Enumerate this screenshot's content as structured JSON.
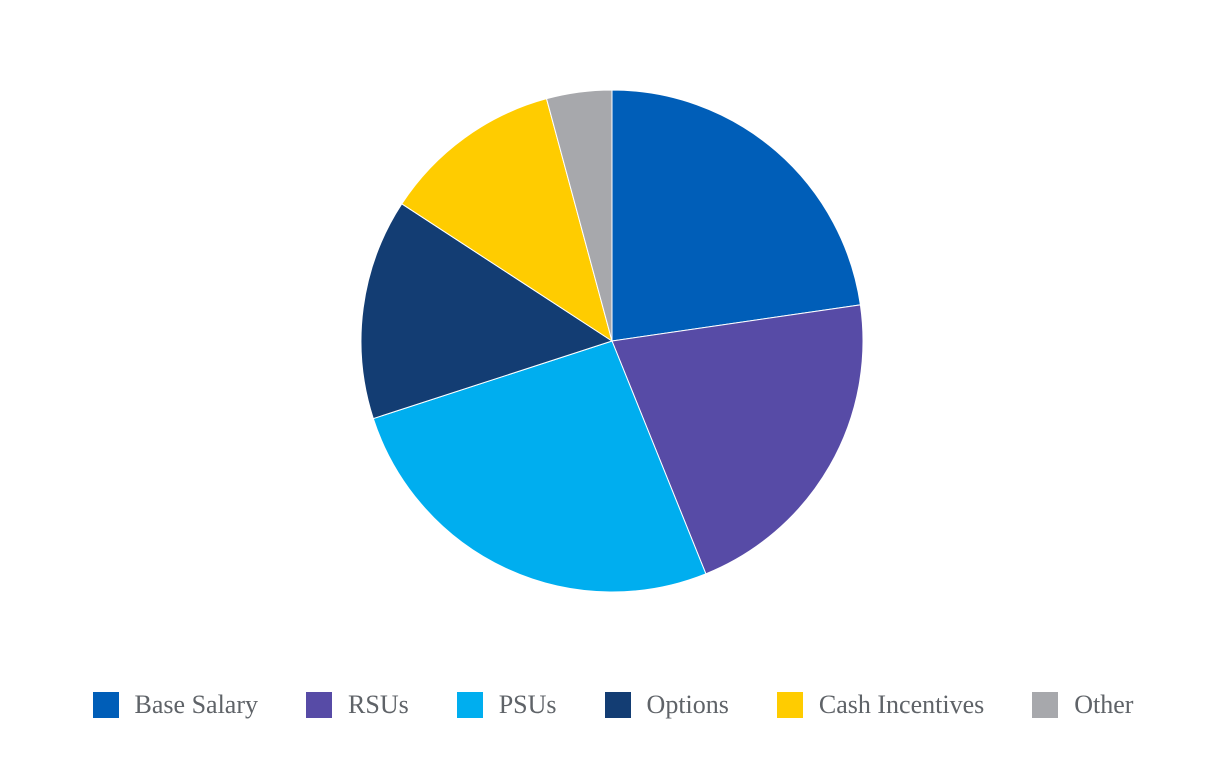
{
  "chart_data": {
    "type": "pie",
    "title": "",
    "start_angle": "12 o'clock",
    "direction": "clockwise",
    "legend_position": "bottom",
    "slices": [
      {
        "label": "Base Salary",
        "value": 22.7,
        "color": "#005EB8"
      },
      {
        "label": "RSUs",
        "value": 21.2,
        "color": "#574BA6"
      },
      {
        "label": "PSUs",
        "value": 26.1,
        "color": "#00AEEF"
      },
      {
        "label": "Options",
        "value": 14.2,
        "color": "#133D73"
      },
      {
        "label": "Cash Incentives",
        "value": 11.6,
        "color": "#FFCC00"
      },
      {
        "label": "Other",
        "value": 4.2,
        "color": "#A7A8AC"
      }
    ]
  }
}
